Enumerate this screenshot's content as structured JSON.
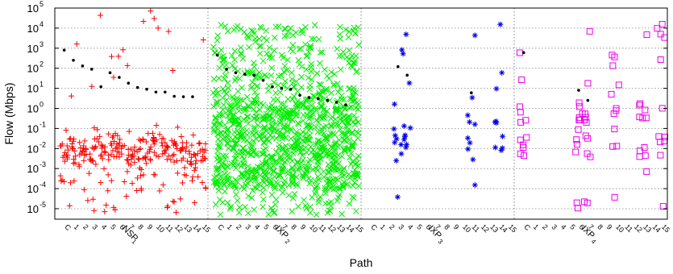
{
  "chart_data": {
    "type": "scatter",
    "xlabel": "Path",
    "ylabel": "Flow (Mbps)",
    "yscale": "log",
    "ylim": [
      3e-06,
      100000
    ],
    "grid": true,
    "y_ticks": [
      {
        "exp": -5,
        "text": "10",
        "sup": "-5"
      },
      {
        "exp": -4,
        "text": "10",
        "sup": "-4"
      },
      {
        "exp": -3,
        "text": "10",
        "sup": "-3"
      },
      {
        "exp": -2,
        "text": "10",
        "sup": "-2"
      },
      {
        "exp": -1,
        "text": "10",
        "sup": "-1"
      },
      {
        "exp": 0,
        "text": "10",
        "sup": "0"
      },
      {
        "exp": 1,
        "text": "10",
        "sup": "1"
      },
      {
        "exp": 2,
        "text": "10",
        "sup": "2"
      },
      {
        "exp": 3,
        "text": "10",
        "sup": "3"
      },
      {
        "exp": 4,
        "text": "10",
        "sup": "4"
      },
      {
        "exp": 5,
        "text": "10",
        "sup": "5"
      }
    ],
    "x_tick_labels": [
      "C",
      "1",
      "2",
      "3",
      "4",
      "5",
      "6",
      "7",
      "8",
      "9",
      "10",
      "11",
      "12",
      "13",
      "14",
      "15"
    ],
    "groups": [
      {
        "label": "NSP",
        "sub": "1",
        "marker": "plus",
        "color": "#ff0000",
        "med": [
          800,
          250,
          130,
          90,
          12,
          60,
          35,
          18,
          11,
          9,
          6.5,
          6.5,
          4,
          3.8,
          3.8
        ]
      },
      {
        "label": "IXP",
        "sub": "2",
        "marker": "cross",
        "color": "#00ee00",
        "med": [
          450,
          90,
          60,
          50,
          45,
          25,
          12,
          10,
          9,
          4.5,
          3.5,
          3,
          2.5,
          2,
          1.5
        ]
      },
      {
        "label": "IXP",
        "sub": "3",
        "marker": "star",
        "color": "#0000ee",
        "med": [
          null,
          null,
          null,
          120,
          45,
          null,
          null,
          null,
          null,
          null,
          null,
          6,
          null,
          null,
          null
        ]
      },
      {
        "label": "IXP",
        "sub": "4",
        "marker": "square",
        "color": "#ee00ee",
        "med": [
          600,
          null,
          null,
          null,
          null,
          null,
          8,
          2.5,
          null,
          null,
          null,
          null,
          null,
          null,
          null
        ]
      }
    ],
    "cluster_ranges": [
      {
        "group": 0,
        "seed": 11,
        "dense": [
          -2.8,
          -1.5
        ],
        "spread": [
          -5.5,
          -0.8
        ],
        "sparse": [
          0.5,
          4.9
        ],
        "n": 18
      },
      {
        "group": 1,
        "seed": 23,
        "dense": [
          -4,
          0.5
        ],
        "spread": [
          -5.3,
          4.2
        ],
        "sparse": [
          0.5,
          4.2
        ],
        "n": 70
      },
      {
        "group": 2,
        "seed": 37,
        "dense": [
          -2.7,
          -0.5
        ],
        "spread": [
          -5.4,
          4.2
        ],
        "sparse": [
          2,
          4.2
        ],
        "n": 10
      },
      {
        "group": 3,
        "seed": 53,
        "dense": [
          -2.5,
          0.3
        ],
        "spread": [
          -5.5,
          4.3
        ],
        "sparse": [
          1,
          4.3
        ],
        "n": 12
      }
    ]
  }
}
